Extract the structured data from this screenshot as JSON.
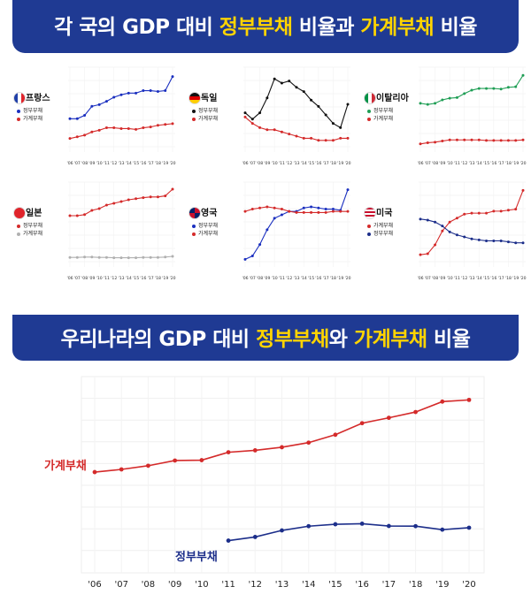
{
  "banner_top": {
    "part1": "각 국의 GDP 대비 ",
    "highlight": "정부부채",
    "part2": " 비율과 ",
    "highlight2": "가계부채",
    "part3": " 비율"
  },
  "banner_mid": {
    "part1": "우리나라의 GDP 대비 ",
    "highlight": "정부부채",
    "part2": "와 ",
    "highlight2": "가계부채",
    "part3": " 비율"
  },
  "colors": {
    "gov_blue": "#1a2fbf",
    "household_red": "#d42a2a",
    "germany_black": "#111111",
    "italy_green": "#1f9e55",
    "japan_gray": "#b0b0b0",
    "korea_blue": "#1c2e8a"
  },
  "chart_data": [
    {
      "type": "line",
      "country": "프랑스",
      "x": [
        "'06",
        "'07",
        "'08",
        "'09",
        "'10",
        "'11",
        "'12",
        "'13",
        "'14",
        "'15",
        "'16",
        "'17",
        "'18",
        "'19",
        "'20"
      ],
      "series": [
        {
          "name": "정부부채",
          "color": "#1a2fbf",
          "values": [
            64,
            64,
            68,
            79,
            81,
            85,
            90,
            93,
            95,
            95,
            98,
            98,
            97,
            98,
            115
          ]
        },
        {
          "name": "가계부채",
          "color": "#d42a2a",
          "values": [
            40,
            42,
            44,
            48,
            50,
            53,
            53,
            52,
            52,
            51,
            53,
            54,
            56,
            57,
            58
          ]
        }
      ],
      "ylim": [
        30,
        120
      ]
    },
    {
      "type": "line",
      "country": "독일",
      "x": [
        "'06",
        "'07",
        "'08",
        "'09",
        "'10",
        "'11",
        "'12",
        "'13",
        "'14",
        "'15",
        "'16",
        "'17",
        "'18",
        "'19",
        "'20"
      ],
      "series": [
        {
          "name": "정부부채",
          "color": "#111111",
          "values": [
            66,
            63,
            66,
            73,
            82,
            80,
            81,
            78,
            76,
            72,
            69,
            65,
            61,
            59,
            70
          ]
        },
        {
          "name": "가계부채",
          "color": "#d42a2a",
          "values": [
            64,
            61,
            59,
            58,
            58,
            57,
            56,
            55,
            54,
            54,
            53,
            53,
            53,
            54,
            54
          ]
        }
      ],
      "ylim": [
        50,
        85
      ]
    },
    {
      "type": "line",
      "country": "이탈리아",
      "x": [
        "'06",
        "'07",
        "'08",
        "'09",
        "'10",
        "'11",
        "'12",
        "'13",
        "'14",
        "'15",
        "'16",
        "'17",
        "'18",
        "'19",
        "'20"
      ],
      "series": [
        {
          "name": "정부부채",
          "color": "#1f9e55",
          "values": [
            106,
            104,
            106,
            112,
            115,
            116,
            123,
            129,
            132,
            132,
            132,
            131,
            134,
            135,
            155
          ]
        },
        {
          "name": "가계부채",
          "color": "#d42a2a",
          "values": [
            35,
            37,
            38,
            40,
            42,
            42,
            42,
            42,
            42,
            41,
            41,
            41,
            41,
            41,
            42
          ]
        }
      ],
      "ylim": [
        30,
        160
      ]
    },
    {
      "type": "line",
      "country": "일본",
      "x": [
        "'06",
        "'07",
        "'08",
        "'09",
        "'10",
        "'11",
        "'12",
        "'13",
        "'14",
        "'15",
        "'16",
        "'17",
        "'18",
        "'19",
        "'20"
      ],
      "series": [
        {
          "name": "정부부채",
          "color": "#d42a2a",
          "values": [
            180,
            180,
            183,
            195,
            200,
            210,
            215,
            220,
            225,
            228,
            231,
            233,
            233,
            236,
            255
          ]
        },
        {
          "name": "가계부채",
          "color": "#b0b0b0",
          "values": [
            62,
            62,
            63,
            63,
            62,
            62,
            61,
            61,
            61,
            61,
            62,
            62,
            62,
            63,
            65
          ]
        }
      ],
      "ylim": [
        50,
        260
      ]
    },
    {
      "type": "line",
      "country": "영국",
      "x": [
        "'06",
        "'07",
        "'08",
        "'09",
        "'10",
        "'11",
        "'12",
        "'13",
        "'14",
        "'15",
        "'16",
        "'17",
        "'18",
        "'19",
        "'20"
      ],
      "series": [
        {
          "name": "정부부채",
          "color": "#1a2fbf",
          "values": [
            42,
            45,
            55,
            68,
            78,
            81,
            84,
            84,
            87,
            88,
            87,
            86,
            86,
            85,
            103
          ]
        },
        {
          "name": "가계부채",
          "color": "#d42a2a",
          "values": [
            84,
            86,
            87,
            88,
            87,
            86,
            84,
            83,
            83,
            83,
            83,
            83,
            84,
            84,
            84
          ]
        }
      ],
      "ylim": [
        40,
        105
      ]
    },
    {
      "type": "line",
      "country": "미국",
      "x": [
        "'06",
        "'07",
        "'08",
        "'09",
        "'10",
        "'11",
        "'12",
        "'13",
        "'14",
        "'15",
        "'16",
        "'17",
        "'18",
        "'19",
        "'20"
      ],
      "series": [
        {
          "name": "가계부채",
          "color": "#d42a2a",
          "values": [
            62,
            63,
            72,
            86,
            95,
            99,
            103,
            104,
            104,
            104,
            106,
            106,
            107,
            108,
            127
          ]
        },
        {
          "name": "정부부채",
          "color": "#1c2e8a",
          "values": [
            98,
            97,
            95,
            91,
            85,
            82,
            80,
            78,
            77,
            76,
            76,
            76,
            75,
            74,
            74
          ]
        }
      ],
      "ylim": [
        55,
        130
      ]
    },
    {
      "type": "line",
      "country": "우리나라",
      "x": [
        "'06",
        "'07",
        "'08",
        "'09",
        "'10",
        "'11",
        "'12",
        "'13",
        "'14",
        "'15",
        "'16",
        "'17",
        "'18",
        "'19",
        "'20"
      ],
      "series": [
        {
          "name": "가계부채",
          "color": "#d42a2a",
          "values": [
            65.9,
            67.3,
            69.2,
            71.9,
            72.1,
            76.2,
            77.2,
            78.8,
            81.2,
            85.3,
            91.3,
            94.1,
            97.1,
            102.5,
            103.4
          ],
          "start_index": 0
        },
        {
          "name": "정부부채",
          "color": "#1c2e8a",
          "values": [
            null,
            null,
            null,
            null,
            null,
            30.3,
            32.2,
            35.6,
            37.8,
            38.8,
            39.1,
            37.9,
            37.8,
            36.0,
            37.0
          ],
          "start_index": 5
        }
      ],
      "ylim": [
        20,
        110
      ]
    }
  ]
}
